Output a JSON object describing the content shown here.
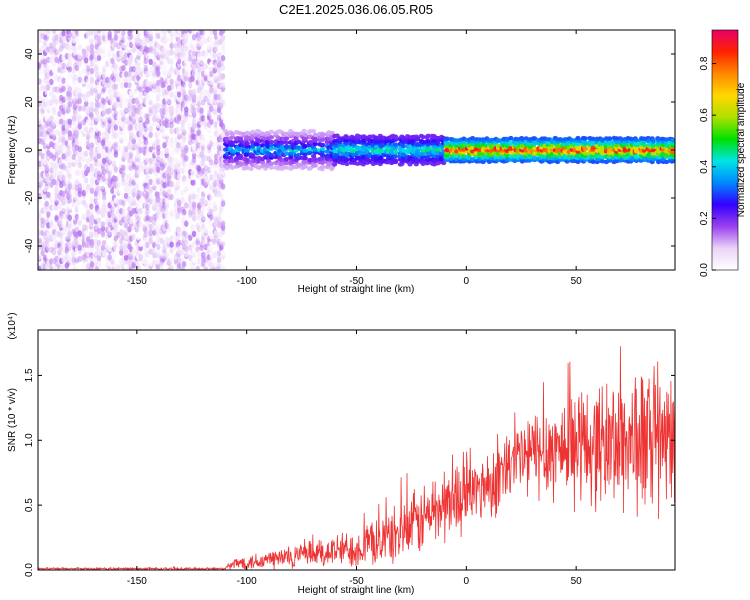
{
  "chart_data": [
    {
      "type": "heatmap",
      "title": "C2E1.2025.036.06.05.R05",
      "xlabel": "Height of straight line (km)",
      "ylabel": "Frequency (Hz)",
      "xlim": [
        -195,
        95
      ],
      "ylim": [
        -50,
        50
      ],
      "xticks": [
        -150,
        -100,
        -50,
        0,
        50
      ],
      "yticks": [
        -40,
        -20,
        0,
        20,
        40
      ],
      "colorbar": {
        "label": "Normalized spectral amplitude",
        "range": [
          0.0,
          0.93
        ],
        "ticks": [
          "0.0",
          "0.2",
          "0.4",
          "0.6",
          "0.8"
        ],
        "colors": [
          "#ffffff",
          "#e9d3f7",
          "#9a40ee",
          "#3300ff",
          "#0088ff",
          "#00e5e5",
          "#00e000",
          "#b0e000",
          "#ffd700",
          "#ff8800",
          "#ff2200",
          "#e8006a"
        ]
      },
      "regions": [
        {
          "x": [
            -195,
            -110
          ],
          "freq_range": [
            -50,
            50
          ],
          "amplitude": [
            0.0,
            0.15
          ]
        },
        {
          "x": [
            -110,
            -60
          ],
          "freq_range": [
            -8,
            8
          ],
          "amplitude": [
            0.1,
            0.45
          ]
        },
        {
          "x": [
            -60,
            -10
          ],
          "freq_range": [
            -6,
            6
          ],
          "amplitude": [
            0.2,
            0.5
          ]
        },
        {
          "x": [
            -10,
            95
          ],
          "freq_range": [
            -5,
            5
          ],
          "amplitude": [
            0.3,
            0.9
          ],
          "peak_freq": 0
        }
      ],
      "grid": false
    },
    {
      "type": "line",
      "xlabel": "Height of straight line (km)",
      "ylabel": "SNR (10 * v/v)",
      "y_multiplier": "(x10⁴)",
      "xlim": [
        -195,
        95
      ],
      "ylim": [
        0.0,
        1.85
      ],
      "xticks": [
        -150,
        -100,
        -50,
        0,
        50
      ],
      "yticks": [
        "0.0",
        "0.5",
        "1.0",
        "1.5"
      ],
      "y_tick_values": [
        0.0,
        0.5,
        1.0,
        1.5
      ],
      "series": [
        {
          "color": "#ee3333",
          "x": [
            -195,
            -150,
            -110,
            -105,
            -90,
            -70,
            -50,
            -35,
            -25,
            -15,
            -5,
            5,
            15,
            25,
            35,
            45,
            55,
            65,
            75,
            85,
            95
          ],
          "y_mean": [
            0.01,
            0.01,
            0.01,
            0.05,
            0.08,
            0.12,
            0.17,
            0.25,
            0.33,
            0.45,
            0.55,
            0.62,
            0.72,
            0.86,
            0.92,
            0.95,
            0.96,
            0.98,
            1.0,
            0.98,
            0.95
          ],
          "y_spread": [
            0.01,
            0.01,
            0.01,
            0.06,
            0.1,
            0.13,
            0.18,
            0.25,
            0.3,
            0.35,
            0.35,
            0.3,
            0.35,
            0.4,
            0.45,
            0.5,
            0.55,
            0.6,
            0.7,
            0.7,
            0.6
          ]
        }
      ],
      "grid": false
    }
  ]
}
